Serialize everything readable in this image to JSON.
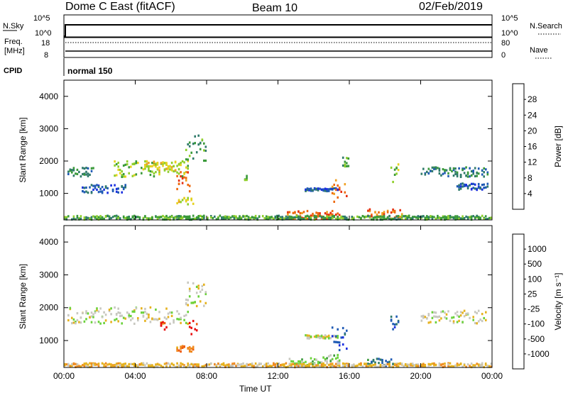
{
  "header": {
    "title": "Dome C East (fitACF)",
    "beam": "Beam 10",
    "date": "02/Feb/2019"
  },
  "status_panels": {
    "nsky_label": "N.Sky",
    "nsky_ticks": [
      "10^5",
      "10^0"
    ],
    "nsearch_label": "N.Search",
    "nsearch_ticks": [
      "10^5",
      "10^0"
    ],
    "freq_label": "Freq.",
    "freq_unit": "[MHz]",
    "freq_ticks": [
      "18",
      "8"
    ],
    "nave_label": "Nave",
    "nave_ticks": [
      "80",
      "0"
    ],
    "cpid_label": "CPID",
    "cpid_value": "normal 150"
  },
  "chart_data": [
    {
      "type": "heatmap",
      "name": "power",
      "ylabel": "Slant Range [km]",
      "xlabel": "Time UT",
      "x_ticks": [
        "00:00",
        "04:00",
        "08:00",
        "12:00",
        "16:00",
        "20:00",
        "00:00"
      ],
      "x_range_hours": [
        0,
        24
      ],
      "ylim": [
        180,
        4500
      ],
      "y_ticks": [
        1000,
        2000,
        3000,
        4000
      ],
      "colorbar": {
        "label": "Power [dB]",
        "ticks": [
          "4",
          "8",
          "12",
          "16",
          "20",
          "24",
          "28"
        ],
        "colors": [
          "#1a2fe0",
          "#1f5ab4",
          "#2f7a6a",
          "#3a9a3a",
          "#8fcf2a",
          "#e6d21e",
          "#f0a020",
          "#ee6a10",
          "#e63010",
          "#e81010"
        ]
      },
      "regions": [
        {
          "t0": 0.2,
          "t1": 1.8,
          "r0": 1500,
          "r1": 1800,
          "level": 2
        },
        {
          "t0": 1.0,
          "t1": 3.5,
          "r0": 1000,
          "r1": 1250,
          "level": 1
        },
        {
          "t0": 2.8,
          "t1": 7.0,
          "r0": 1500,
          "r1": 2000,
          "level": 4
        },
        {
          "t0": 4.5,
          "t1": 6.5,
          "r0": 1700,
          "r1": 2000,
          "level": 5
        },
        {
          "t0": 6.3,
          "t1": 7.1,
          "r0": 1000,
          "r1": 1700,
          "level": 7
        },
        {
          "t0": 6.8,
          "t1": 8.0,
          "r0": 2000,
          "r1": 2800,
          "level": 3
        },
        {
          "t0": 6.3,
          "t1": 7.3,
          "r0": 650,
          "r1": 850,
          "level": 5
        },
        {
          "t0": 10.1,
          "t1": 10.3,
          "r0": 1400,
          "r1": 1650,
          "level": 3
        },
        {
          "t0": 12.5,
          "t1": 15.5,
          "r0": 200,
          "r1": 450,
          "level": 7
        },
        {
          "t0": 13.5,
          "t1": 15.4,
          "r0": 1050,
          "r1": 1150,
          "level": 1
        },
        {
          "t0": 15.0,
          "t1": 15.9,
          "r0": 700,
          "r1": 1400,
          "level": 7
        },
        {
          "t0": 15.6,
          "t1": 16.0,
          "r0": 1800,
          "r1": 2100,
          "level": 3
        },
        {
          "t0": 17.0,
          "t1": 19.0,
          "r0": 200,
          "r1": 500,
          "level": 7
        },
        {
          "t0": 18.3,
          "t1": 18.8,
          "r0": 1300,
          "r1": 1900,
          "level": 4
        },
        {
          "t0": 20.0,
          "t1": 23.8,
          "r0": 1500,
          "r1": 1800,
          "level": 2
        },
        {
          "t0": 22.0,
          "t1": 23.8,
          "r0": 1100,
          "r1": 1300,
          "level": 1
        },
        {
          "t0": 0.0,
          "t1": 24.0,
          "r0": 180,
          "r1": 300,
          "level": 3
        }
      ]
    },
    {
      "type": "heatmap",
      "name": "velocity",
      "ylabel": "Slant Range [km]",
      "xlabel": "Time UT",
      "x_ticks": [
        "00:00",
        "04:00",
        "08:00",
        "12:00",
        "16:00",
        "20:00",
        "00:00"
      ],
      "x_range_hours": [
        0,
        24
      ],
      "ylim": [
        180,
        4500
      ],
      "y_ticks": [
        1000,
        2000,
        3000,
        4000
      ],
      "colorbar": {
        "label": "Velocity [m s⁻¹]",
        "ticks": [
          "1000",
          "500",
          "100",
          "25",
          "-25",
          "-100",
          "-500",
          "-1000"
        ],
        "colors": [
          "#1a2fe0",
          "#1f5ab4",
          "#2f7a6a",
          "#3a9a3a",
          "#6ad23a",
          "#c8c8c0",
          "#e6b21e",
          "#f08a20",
          "#ee5a10",
          "#e81010"
        ]
      },
      "regions": [
        {
          "t0": 0.2,
          "t1": 7.0,
          "r0": 1500,
          "r1": 2000,
          "level": 5
        },
        {
          "t0": 6.8,
          "t1": 8.0,
          "r0": 2000,
          "r1": 2800,
          "level": 5
        },
        {
          "t0": 5.4,
          "t1": 5.8,
          "r0": 1300,
          "r1": 1600,
          "level": 9
        },
        {
          "t0": 7.0,
          "t1": 7.5,
          "r0": 1100,
          "r1": 1600,
          "level": 9
        },
        {
          "t0": 6.3,
          "t1": 7.3,
          "r0": 650,
          "r1": 850,
          "level": 7
        },
        {
          "t0": 12.5,
          "t1": 14.5,
          "r0": 200,
          "r1": 450,
          "level": 4
        },
        {
          "t0": 14.5,
          "t1": 15.5,
          "r0": 350,
          "r1": 550,
          "level": 4
        },
        {
          "t0": 13.5,
          "t1": 15.4,
          "r0": 1050,
          "r1": 1150,
          "level": 5
        },
        {
          "t0": 15.0,
          "t1": 15.9,
          "r0": 700,
          "r1": 1400,
          "level": 1
        },
        {
          "t0": 17.0,
          "t1": 18.5,
          "r0": 200,
          "r1": 450,
          "level": 2
        },
        {
          "t0": 18.3,
          "t1": 18.8,
          "r0": 1300,
          "r1": 1900,
          "level": 1
        },
        {
          "t0": 20.0,
          "t1": 23.8,
          "r0": 1500,
          "r1": 1900,
          "level": 5
        },
        {
          "t0": 0.0,
          "t1": 24.0,
          "r0": 180,
          "r1": 300,
          "level": 6
        }
      ]
    }
  ]
}
